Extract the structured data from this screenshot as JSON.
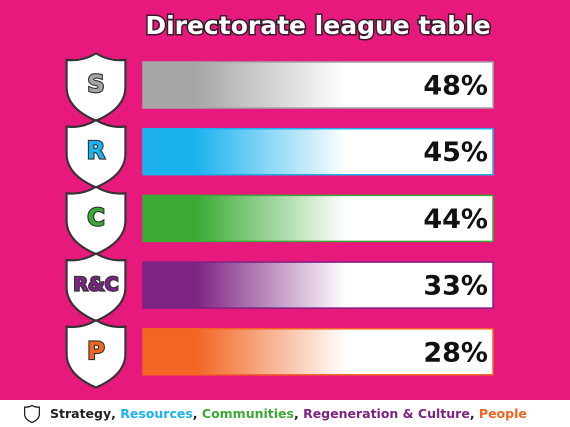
{
  "title": "Directorate league table",
  "rows": [
    {
      "badge": "S",
      "value": "48%",
      "color": "#a6a6a6"
    },
    {
      "badge": "R",
      "value": "45%",
      "color": "#1cb2ee"
    },
    {
      "badge": "C",
      "value": "44%",
      "color": "#3aaa35"
    },
    {
      "badge": "R&C",
      "value": "33%",
      "color": "#7d2383"
    },
    {
      "badge": "P",
      "value": "28%",
      "color": "#f26522"
    }
  ],
  "legend": {
    "separator": ", ",
    "items": [
      {
        "text": "Strategy",
        "color": "#222222"
      },
      {
        "text": "Resources",
        "color": "#1cb2ee"
      },
      {
        "text": "Communities",
        "color": "#3aaa35"
      },
      {
        "text": "Regeneration & Culture",
        "color": "#7d2383"
      },
      {
        "text": "People",
        "color": "#f26522"
      }
    ]
  }
}
